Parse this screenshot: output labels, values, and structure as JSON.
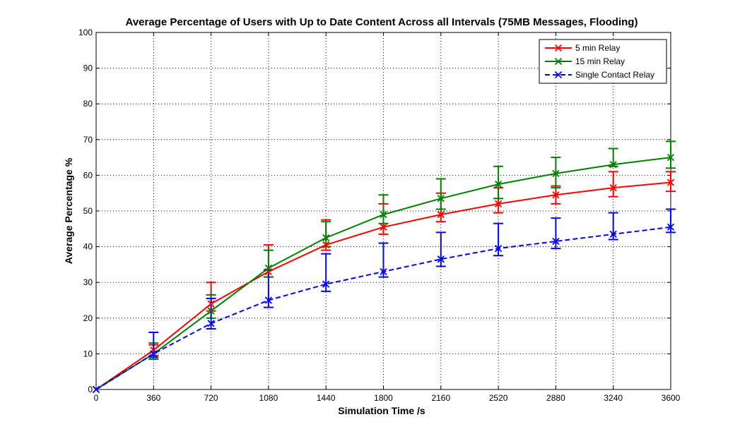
{
  "chart_data": {
    "type": "line",
    "title": "Average Percentage of Users with Up to Date Content Across all Intervals (75MB Messages, Flooding)",
    "xlabel": "Simulation Time /s",
    "ylabel": "Average Percentage %",
    "xlim": [
      0,
      3600
    ],
    "ylim": [
      0,
      100
    ],
    "x_ticks": [
      0,
      360,
      720,
      1080,
      1440,
      1800,
      2160,
      2520,
      2880,
      3240,
      3600
    ],
    "y_ticks": [
      0,
      10,
      20,
      30,
      40,
      50,
      60,
      70,
      80,
      90,
      100
    ],
    "grid": true,
    "legend_position": "top-right",
    "x": [
      0,
      360,
      720,
      1080,
      1440,
      1800,
      2160,
      2520,
      2880,
      3240,
      3600
    ],
    "series": [
      {
        "name": "5 min Relay",
        "color": "#ff0000",
        "line_style": "solid",
        "marker": "x",
        "values": [
          0,
          11,
          24,
          33,
          40.5,
          45.5,
          49,
          52,
          54.5,
          56.5,
          58
        ],
        "err_low": [
          0,
          9.5,
          22,
          31.5,
          39,
          43.5,
          47,
          49.5,
          52,
          54,
          55.5
        ],
        "err_high": [
          0,
          12.5,
          30,
          40.5,
          47.5,
          52,
          55,
          56.5,
          57,
          61,
          61
        ]
      },
      {
        "name": "15 min Relay",
        "color": "#008000",
        "line_style": "solid",
        "marker": "x",
        "values": [
          0,
          10,
          22,
          34,
          42.5,
          49,
          53.5,
          57.5,
          60.5,
          63,
          65
        ],
        "err_low": [
          0,
          8.5,
          20,
          31.5,
          40,
          46.5,
          50.5,
          53.5,
          56.5,
          62.5,
          62
        ],
        "err_high": [
          0,
          13,
          26.5,
          39,
          47,
          54.5,
          59,
          62.5,
          65,
          67.5,
          69.5
        ]
      },
      {
        "name": "Single Contact Relay",
        "color": "#0000ff",
        "line_style": "dashed",
        "marker": "x",
        "values": [
          0,
          10,
          18.5,
          25,
          29.5,
          33,
          36.5,
          39.5,
          41.5,
          43.5,
          45.5
        ],
        "err_low": [
          0,
          9,
          17,
          23,
          27.5,
          31.5,
          34.5,
          37.5,
          39.5,
          42,
          44
        ],
        "err_high": [
          0,
          16,
          25.5,
          33.5,
          38,
          41,
          44,
          46.5,
          48,
          49.5,
          50.5
        ]
      }
    ]
  }
}
